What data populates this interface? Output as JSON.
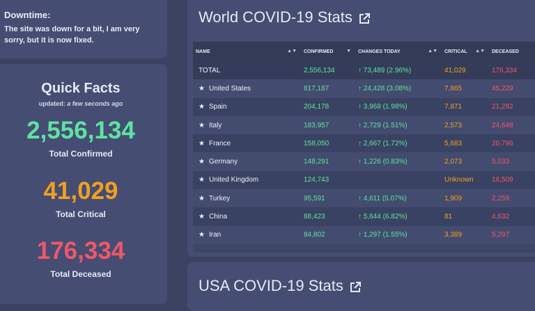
{
  "downtime": {
    "title": "Downtime:",
    "message": "The site was down for a bit, I am very sorry, but it is now fixed."
  },
  "quick_facts": {
    "title": "Quick Facts",
    "updated_prefix": "updated:",
    "updated_value": "a few seconds ago",
    "confirmed": "2,556,134",
    "confirmed_label": "Total Confirmed",
    "critical": "41,029",
    "critical_label": "Total Critical",
    "deceased": "176,334",
    "deceased_label": "Total Deceased"
  },
  "world": {
    "title": "World COVID-19 Stats",
    "columns": [
      "NAME",
      "CONFIRMED",
      "CHANGES TODAY",
      "CRITICAL",
      "DECEASED"
    ],
    "rows": [
      {
        "star": "",
        "name": "TOTAL",
        "confirmed": "2,556,134",
        "change": "↑ 73,489 (2.96%)",
        "critical": "41,029",
        "deceased": "176,334"
      },
      {
        "star": "★",
        "name": "United States",
        "confirmed": "817,187",
        "change": "↑ 24,428 (3.08%)",
        "critical": "7,865",
        "deceased": "45,229"
      },
      {
        "star": "★",
        "name": "Spain",
        "confirmed": "204,178",
        "change": "↑ 3,968 (1.98%)",
        "critical": "7,871",
        "deceased": "21,282"
      },
      {
        "star": "★",
        "name": "Italy",
        "confirmed": "183,957",
        "change": "↑ 2,729 (1.51%)",
        "critical": "2,573",
        "deceased": "24,648"
      },
      {
        "star": "★",
        "name": "France",
        "confirmed": "158,050",
        "change": "↑ 2,667 (1.72%)",
        "critical": "5,683",
        "deceased": "20,796"
      },
      {
        "star": "★",
        "name": "Germany",
        "confirmed": "148,291",
        "change": "↑ 1,226 (0.83%)",
        "critical": "2,073",
        "deceased": "5,033"
      },
      {
        "star": "★",
        "name": "United Kingdom",
        "confirmed": "124,743",
        "change": "",
        "critical": "Unknown",
        "deceased": "16,509"
      },
      {
        "star": "★",
        "name": "Turkey",
        "confirmed": "95,591",
        "change": "↑ 4,611 (5.07%)",
        "critical": "1,909",
        "deceased": "2,259"
      },
      {
        "star": "★",
        "name": "China",
        "confirmed": "88,423",
        "change": "↑ 5,644 (6.82%)",
        "critical": "81",
        "deceased": "4,632"
      },
      {
        "star": "★",
        "name": "Iran",
        "confirmed": "84,802",
        "change": "↑ 1,297 (1.55%)",
        "critical": "3,389",
        "deceased": "5,297"
      }
    ]
  },
  "usa": {
    "title": "USA COVID-19 Stats"
  },
  "colors": {
    "confirmed": "#5ee3a2",
    "critical": "#f0a020",
    "deceased": "#ef5868",
    "card": "#454d72",
    "background": "#3b4262"
  },
  "icons": {
    "external_link": "external-link-icon",
    "sort": "sort-arrows-icon",
    "favorite": "star-icon"
  }
}
